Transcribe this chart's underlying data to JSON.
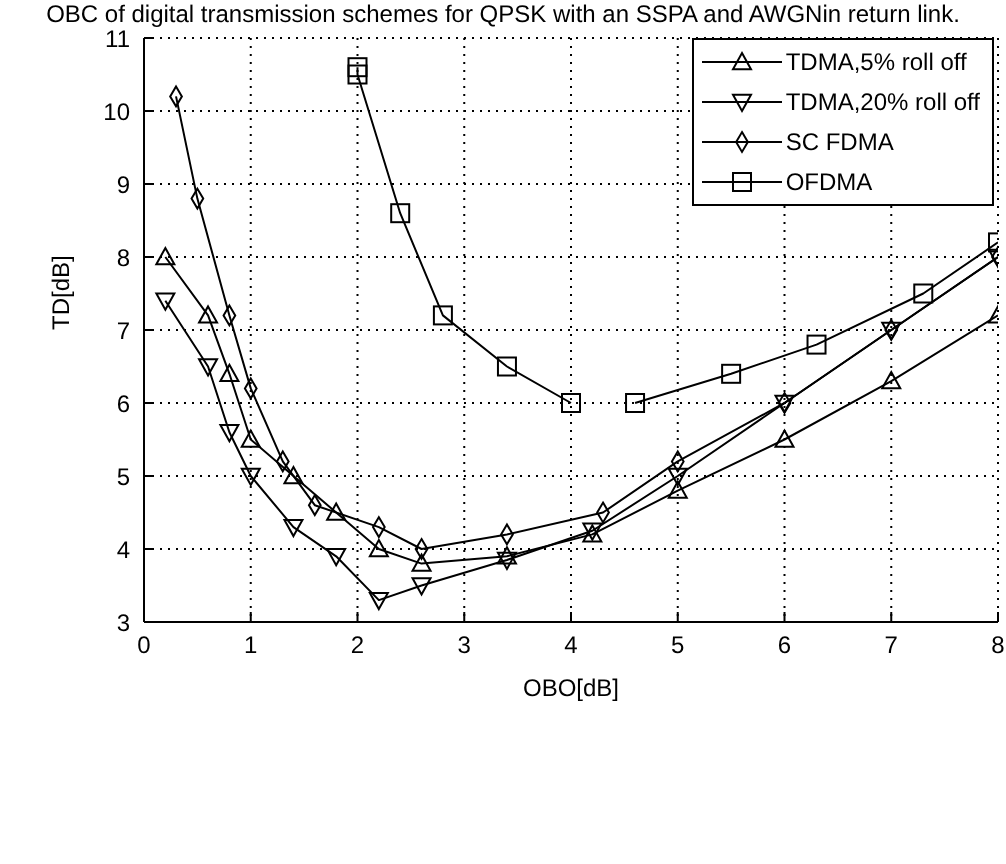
{
  "chart_data": {
    "type": "line",
    "title": "OBC of digital transmission schemes for QPSK with an SSPA and AWGNin return link.",
    "xlabel": "OBO[dB]",
    "ylabel": "TD[dB]",
    "xlim": [
      0,
      8
    ],
    "xticks": [
      0,
      1,
      2,
      3,
      4,
      5,
      6,
      7,
      8
    ],
    "ylim": [
      3,
      11
    ],
    "yticks": [
      3,
      4,
      5,
      6,
      7,
      8,
      9,
      10,
      11
    ],
    "grid": true,
    "legend": "top right",
    "series": [
      {
        "name": "TDMA,5% roll off",
        "color": "#000000",
        "marker": "triangle",
        "x": [
          0.2,
          0.6,
          0.8,
          1.0,
          1.4,
          1.8,
          2.2,
          2.6,
          3.4,
          4.2,
          5,
          6,
          7,
          8
        ],
        "values": [
          8.0,
          7.2,
          6.4,
          5.5,
          5.0,
          4.5,
          4.0,
          3.8,
          3.9,
          4.2,
          4.8,
          5.5,
          6.3,
          7.2
        ]
      },
      {
        "name": "TDMA,20% roll off",
        "color": "#000000",
        "marker": "triangle-down",
        "x": [
          0.2,
          0.6,
          0.8,
          1.0,
          1.4,
          1.8,
          2.2,
          2.6,
          3.4,
          4.2,
          5,
          6,
          7,
          8
        ],
        "values": [
          7.4,
          6.5,
          5.6,
          5.0,
          4.3,
          3.9,
          3.3,
          3.5,
          3.85,
          4.25,
          5.0,
          6.0,
          7.0,
          8.0
        ]
      },
      {
        "name": "SC FDMA",
        "color": "#000000",
        "marker": "diamond",
        "x": [
          0.3,
          0.5,
          0.8,
          1.0,
          1.3,
          1.6,
          2.2,
          2.6,
          3.4,
          4.3,
          5,
          6,
          7,
          8
        ],
        "values": [
          10.2,
          8.8,
          7.2,
          6.2,
          5.2,
          4.6,
          4.3,
          4.0,
          4.2,
          4.5,
          5.2,
          6.0,
          7.0,
          8.0
        ]
      },
      {
        "name": "OFDMA",
        "color": "#000000",
        "marker": "square",
        "x": [
          2,
          2,
          2.4,
          2.8,
          3.4,
          4,
          4.3,
          4.6,
          5.5,
          6.3,
          7.3,
          8
        ],
        "values": [
          10.6,
          10.5,
          8.6,
          7.2,
          6.5,
          6.0,
          null,
          6.0,
          6.4,
          6.8,
          7.5,
          8.2
        ]
      }
    ]
  }
}
